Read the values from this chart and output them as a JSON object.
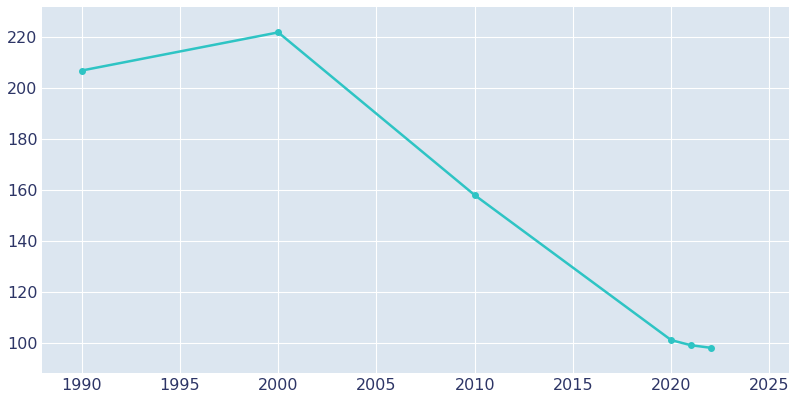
{
  "years": [
    1990,
    2000,
    2010,
    2020,
    2021,
    2022
  ],
  "population": [
    207,
    222,
    158,
    101,
    99,
    98
  ],
  "line_color": "#2ec4c4",
  "marker_color": "#2ec4c4",
  "figure_background": "#ffffff",
  "axes_background": "#dce6f0",
  "xlim": [
    1988,
    2026
  ],
  "ylim": [
    88,
    232
  ],
  "xticks": [
    1990,
    1995,
    2000,
    2005,
    2010,
    2015,
    2020,
    2025
  ],
  "yticks": [
    100,
    120,
    140,
    160,
    180,
    200,
    220
  ],
  "grid_color": "#ffffff",
  "tick_label_color": "#2d3566",
  "linewidth": 1.8,
  "markersize": 4,
  "tick_fontsize": 11.5
}
